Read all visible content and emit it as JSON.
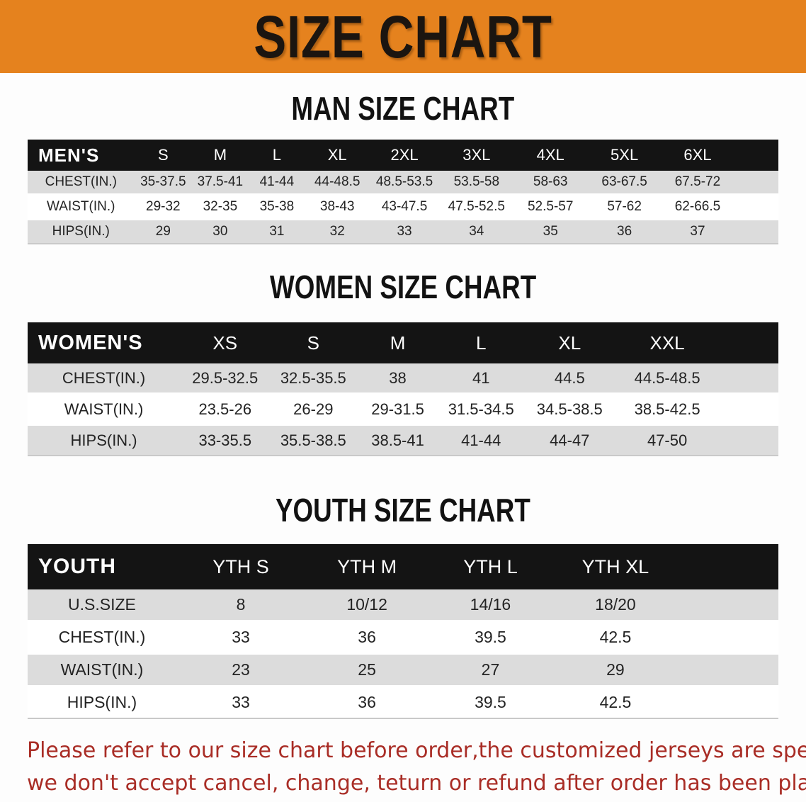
{
  "banner": {
    "title": "SIZE CHART"
  },
  "colors": {
    "accent_orange": "#E5821E",
    "header_black": "#141414",
    "row_gray": "#DCDCDC",
    "disclaimer_red": "#A92D26"
  },
  "sections": [
    {
      "heading": "MAN SIZE CHART",
      "table": {
        "header_label": "MEN'S",
        "sizes": [
          "S",
          "M",
          "L",
          "XL",
          "2XL",
          "3XL",
          "4XL",
          "5XL",
          "6XL"
        ],
        "rows": [
          {
            "label": "CHEST(IN.)",
            "values": [
              "35-37.5",
              "37.5-41",
              "41-44",
              "44-48.5",
              "48.5-53.5",
              "53.5-58",
              "58-63",
              "63-67.5",
              "67.5-72"
            ]
          },
          {
            "label": "WAIST(IN.)",
            "values": [
              "29-32",
              "32-35",
              "35-38",
              "38-43",
              "43-47.5",
              "47.5-52.5",
              "52.5-57",
              "57-62",
              "62-66.5"
            ]
          },
          {
            "label": "HIPS(IN.)",
            "values": [
              "29",
              "30",
              "31",
              "32",
              "33",
              "34",
              "35",
              "36",
              "37"
            ]
          }
        ]
      }
    },
    {
      "heading": "WOMEN SIZE CHART",
      "table": {
        "header_label": "WOMEN'S",
        "sizes": [
          "XS",
          "S",
          "M",
          "L",
          "XL",
          "XXL"
        ],
        "rows": [
          {
            "label": "CHEST(IN.)",
            "values": [
              "29.5-32.5",
              "32.5-35.5",
              "38",
              "41",
              "44.5",
              "44.5-48.5"
            ]
          },
          {
            "label": "WAIST(IN.)",
            "values": [
              "23.5-26",
              "26-29",
              "29-31.5",
              "31.5-34.5",
              "34.5-38.5",
              "38.5-42.5"
            ]
          },
          {
            "label": "HIPS(IN.)",
            "values": [
              "33-35.5",
              "35.5-38.5",
              "38.5-41",
              "41-44",
              "44-47",
              "47-50"
            ]
          }
        ]
      }
    },
    {
      "heading": "YOUTH SIZE CHART",
      "table": {
        "header_label": "YOUTH",
        "sizes": [
          "YTH S",
          "YTH M",
          "YTH L",
          "YTH XL"
        ],
        "rows": [
          {
            "label": "U.S.SIZE",
            "values": [
              "8",
              "10/12",
              "14/16",
              "18/20"
            ]
          },
          {
            "label": "CHEST(IN.)",
            "values": [
              "33",
              "36",
              "39.5",
              "42.5"
            ]
          },
          {
            "label": "WAIST(IN.)",
            "values": [
              "23",
              "25",
              "27",
              "29"
            ]
          },
          {
            "label": "HIPS(IN.)",
            "values": [
              "33",
              "36",
              "39.5",
              "42.5"
            ]
          }
        ]
      }
    }
  ],
  "disclaimer": {
    "line1": "Please refer to our size chart before order,the customized jerseys are special products,",
    "line2": "we don't accept cancel, change, teturn or refund after order has been placed!"
  }
}
